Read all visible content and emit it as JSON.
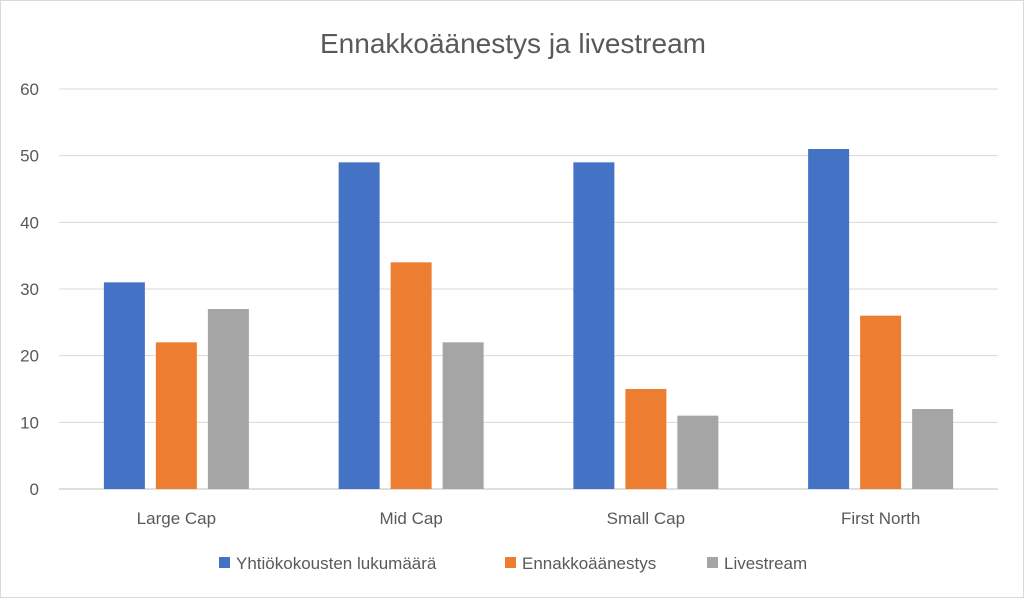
{
  "chart_data": {
    "type": "bar",
    "title": "Ennakkoäänestys ja livestream",
    "categories": [
      "Large Cap",
      "Mid Cap",
      "Small Cap",
      "First North"
    ],
    "series": [
      {
        "name": "Yhtiökokousten lukumäärä",
        "color": "#4472c4",
        "values": [
          31,
          49,
          49,
          51
        ]
      },
      {
        "name": "Ennakkoäänestys",
        "color": "#ed7d31",
        "values": [
          22,
          34,
          15,
          26
        ]
      },
      {
        "name": "Livestream",
        "color": "#a5a5a5",
        "values": [
          27,
          22,
          11,
          12
        ]
      }
    ],
    "ylim": [
      0,
      60
    ],
    "yticks": [
      0,
      10,
      20,
      30,
      40,
      50,
      60
    ],
    "grid": true,
    "legend_position": "bottom"
  }
}
